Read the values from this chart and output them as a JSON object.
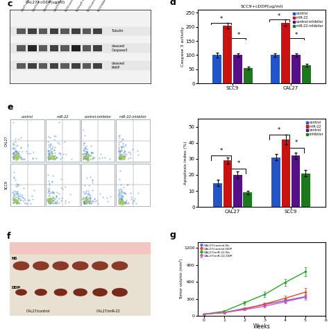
{
  "panel_d": {
    "title_top": "CAL27+cDDP(ug/ml)",
    "title_right": "SCC9+cDDP(ug/ml)",
    "xlabel_groups": [
      "SCC9",
      "CAL27"
    ],
    "legend_labels": [
      "control",
      "miR-22",
      "control-inhibitor",
      "miR-22-inhibitor"
    ],
    "colors": [
      "#2255cc",
      "#cc1111",
      "#551088",
      "#1a7a1a"
    ],
    "values": {
      "SCC9": [
        100,
        205,
        100,
        55
      ],
      "CAL27": [
        100,
        215,
        100,
        65
      ]
    },
    "errors": {
      "SCC9": [
        8,
        10,
        6,
        5
      ],
      "CAL27": [
        6,
        12,
        6,
        5
      ]
    },
    "ylabel": "Caspase 3 activity",
    "ylim": [
      0,
      260
    ],
    "yticks": [
      0,
      50,
      100,
      150,
      200,
      250
    ]
  },
  "panel_e": {
    "xlabel_groups": [
      "CAL27",
      "SCC9"
    ],
    "legend_labels": [
      "control",
      "miR-22",
      "control",
      "inhibitor"
    ],
    "colors": [
      "#2255cc",
      "#cc1111",
      "#551088",
      "#1a7a1a"
    ],
    "values": {
      "CAL27": [
        15,
        29,
        20,
        9
      ],
      "SCC9": [
        31,
        42,
        32,
        21
      ]
    },
    "errors": {
      "CAL27": [
        2,
        2,
        2,
        1
      ],
      "SCC9": [
        2,
        3,
        2,
        2
      ]
    },
    "ylabel": "Apoptosis index (%)",
    "ylim": [
      0,
      55
    ],
    "yticks": [
      0,
      10,
      20,
      30,
      40,
      50
    ]
  },
  "panel_g": {
    "xlabel": "Weeks",
    "ylabel": "Tumor volumn (mm³)",
    "ylim": [
      0,
      1300
    ],
    "yticks": [
      0,
      300,
      600,
      900,
      1200
    ],
    "xlim": [
      -0.3,
      6
    ],
    "xticks": [
      0,
      1,
      2,
      3,
      4,
      5,
      6
    ],
    "lines": [
      {
        "label": "CAL27/control-Ns",
        "color": "#6666cc",
        "x": [
          0,
          1,
          2,
          3,
          4,
          5
        ],
        "y": [
          30,
          60,
          130,
          200,
          270,
          340
        ],
        "errors": [
          5,
          10,
          15,
          20,
          25,
          30
        ]
      },
      {
        "label": "CAL27/control-DDP",
        "color": "#ee4422",
        "x": [
          0,
          1,
          2,
          3,
          4,
          5
        ],
        "y": [
          30,
          55,
          120,
          210,
          310,
          420
        ],
        "errors": [
          5,
          8,
          15,
          25,
          50,
          70
        ]
      },
      {
        "label": "CAL27/miR-22-Ns",
        "color": "#22aa22",
        "x": [
          0,
          1,
          2,
          3,
          4,
          5
        ],
        "y": [
          30,
          80,
          230,
          380,
          590,
          780
        ],
        "errors": [
          5,
          15,
          30,
          45,
          60,
          80
        ]
      },
      {
        "label": "CAL27/miR-22-DDP",
        "color": "#cc55cc",
        "x": [
          0,
          1,
          2,
          3,
          4,
          5
        ],
        "y": [
          30,
          60,
          110,
          170,
          250,
          330
        ],
        "errors": [
          5,
          8,
          12,
          20,
          30,
          50
        ]
      }
    ]
  }
}
